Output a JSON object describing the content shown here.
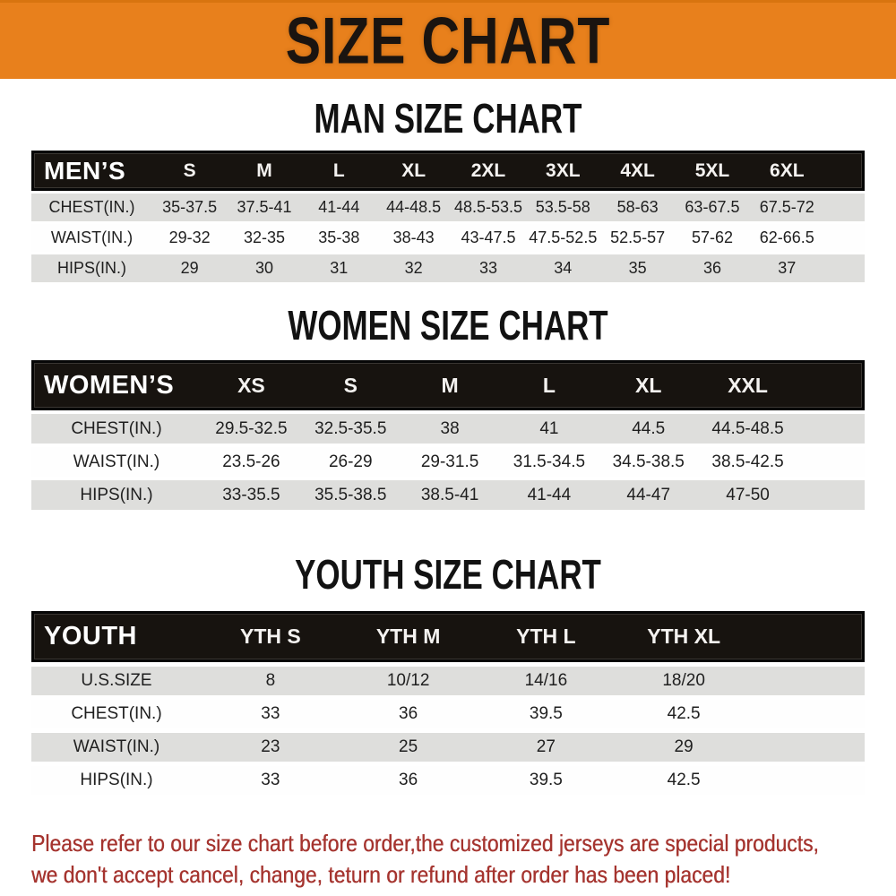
{
  "banner": {
    "title": "SIZE CHART"
  },
  "colors": {
    "banner_orange": "#E8801C",
    "header_black": "#17130F",
    "row_gray": "#DEDEDC",
    "row_white": "#FEFEFE",
    "note_red": "#A5342F",
    "title_black": "#121212"
  },
  "sections": [
    {
      "key": "mens",
      "title": "MAN SIZE CHART",
      "corner_label": "MEN’S",
      "columns": [
        "S",
        "M",
        "L",
        "XL",
        "2XL",
        "3XL",
        "4XL",
        "5XL",
        "6XL"
      ],
      "rows": [
        {
          "label": "CHEST(IN.)",
          "values": [
            "35-37.5",
            "37.5-41",
            "41-44",
            "44-48.5",
            "48.5-53.5",
            "53.5-58",
            "58-63",
            "63-67.5",
            "67.5-72"
          ]
        },
        {
          "label": "WAIST(IN.)",
          "values": [
            "29-32",
            "32-35",
            "35-38",
            "38-43",
            "43-47.5",
            "47.5-52.5",
            "52.5-57",
            "57-62",
            "62-66.5"
          ]
        },
        {
          "label": "HIPS(IN.)",
          "values": [
            "29",
            "30",
            "31",
            "32",
            "33",
            "34",
            "35",
            "36",
            "37"
          ]
        }
      ]
    },
    {
      "key": "womens",
      "title": "WOMEN SIZE CHART",
      "corner_label": "WOMEN’S",
      "columns": [
        "XS",
        "S",
        "M",
        "L",
        "XL",
        "XXL"
      ],
      "rows": [
        {
          "label": "CHEST(IN.)",
          "values": [
            "29.5-32.5",
            "32.5-35.5",
            "38",
            "41",
            "44.5",
            "44.5-48.5"
          ]
        },
        {
          "label": "WAIST(IN.)",
          "values": [
            "23.5-26",
            "26-29",
            "29-31.5",
            "31.5-34.5",
            "34.5-38.5",
            "38.5-42.5"
          ]
        },
        {
          "label": "HIPS(IN.)",
          "values": [
            "33-35.5",
            "35.5-38.5",
            "38.5-41",
            "41-44",
            "44-47",
            "47-50"
          ]
        }
      ]
    },
    {
      "key": "youth",
      "title": "YOUTH SIZE CHART",
      "corner_label": "YOUTH",
      "columns": [
        "YTH S",
        "YTH M",
        "YTH L",
        "YTH XL"
      ],
      "rows": [
        {
          "label": "U.S.SIZE",
          "values": [
            "8",
            "10/12",
            "14/16",
            "18/20"
          ]
        },
        {
          "label": "CHEST(IN.)",
          "values": [
            "33",
            "36",
            "39.5",
            "42.5"
          ]
        },
        {
          "label": "WAIST(IN.)",
          "values": [
            "23",
            "25",
            "27",
            "29"
          ]
        },
        {
          "label": "HIPS(IN.)",
          "values": [
            "33",
            "36",
            "39.5",
            "42.5"
          ]
        }
      ]
    }
  ],
  "note": {
    "lines": [
      "Please refer to our size chart before order,the customized jerseys are special products,",
      "we don't accept cancel, change, teturn or refund after order has been placed!"
    ]
  }
}
